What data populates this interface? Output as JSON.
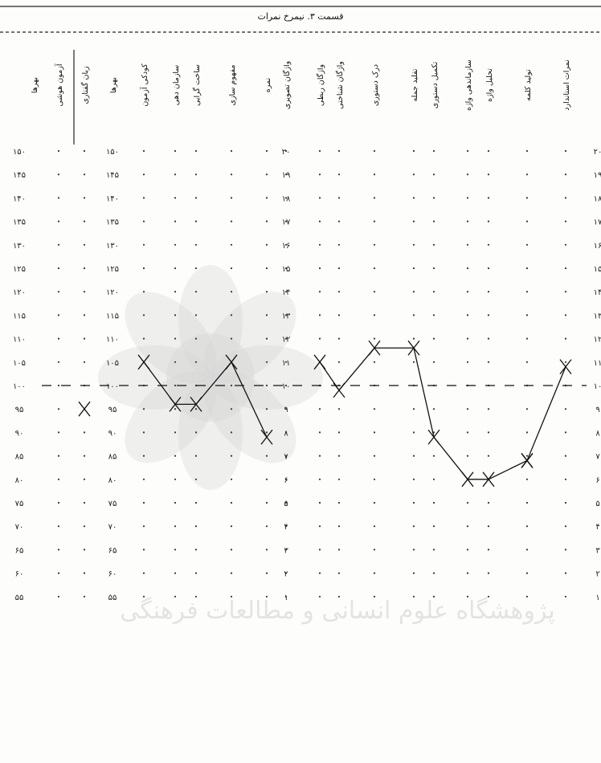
{
  "header": {
    "title": "قسمت ۳. نیمرخ نمرات"
  },
  "chart_data": {
    "type": "line",
    "title": "قسمت ۳. نیمرخ نمرات",
    "columns": [
      "بهرها",
      "آزمون هوشی",
      "زبان گفتاری",
      "بهرها",
      "کودکی آزمون",
      "سازمان دهی",
      "ساخت گرایی",
      "مفهوم سازی",
      "نمره",
      "واژگان تصویری",
      "واژگان ربطی",
      "واژگان شناختی",
      "درک دستوری",
      "تقلید جمله",
      "تکمیل دستوری",
      "سازماندهی واژه",
      "تحلیل واژه",
      "تولید کلمه",
      "نمرات استاندارد"
    ],
    "iq_ticks": [
      "۱۵۰",
      "۱۴۵",
      "۱۴۰",
      "۱۳۵",
      "۱۳۰",
      "۱۲۵",
      "۱۲۰",
      "۱۱۵",
      "۱۱۰",
      "۱۰۵",
      "۱۰۰",
      "۹۵",
      "۹۰",
      "۸۵",
      "۸۰",
      "۷۵",
      "۷۰",
      "۶۵",
      "۶۰",
      "۵۵"
    ],
    "std_ticks": [
      "۲۰",
      "۱۹",
      "۱۸",
      "۱۷",
      "۱۶",
      "۱۵",
      "۱۴",
      "۱۳",
      "۱۲",
      "۱۱",
      "۱۰",
      "۹",
      "۸",
      "۷",
      "۶",
      "۵",
      "۴",
      "۳",
      "۲",
      "۱"
    ],
    "iq_range": [
      55,
      150
    ],
    "std_range": [
      1,
      20
    ],
    "reference_line": 100,
    "grid": "dotted",
    "series": [
      {
        "x": [
          2
        ],
        "y": [
          95
        ],
        "scale": "iq"
      },
      {
        "x": [
          4,
          5,
          6,
          7,
          8
        ],
        "y": [
          105,
          96,
          96,
          105,
          89
        ],
        "scale": "iq"
      },
      {
        "x": [
          10,
          11,
          12,
          13,
          14,
          15,
          16,
          17
        ],
        "y": [
          105,
          99,
          108,
          108,
          89,
          80,
          80,
          84
        ],
        "scale": "iq"
      },
      {
        "x": [
          17,
          18
        ],
        "y": [
          84,
          104
        ],
        "scale": "iq"
      }
    ],
    "watermark_text": "پژوهشگاه علوم انسانی و مطالعات فرهنگی"
  }
}
